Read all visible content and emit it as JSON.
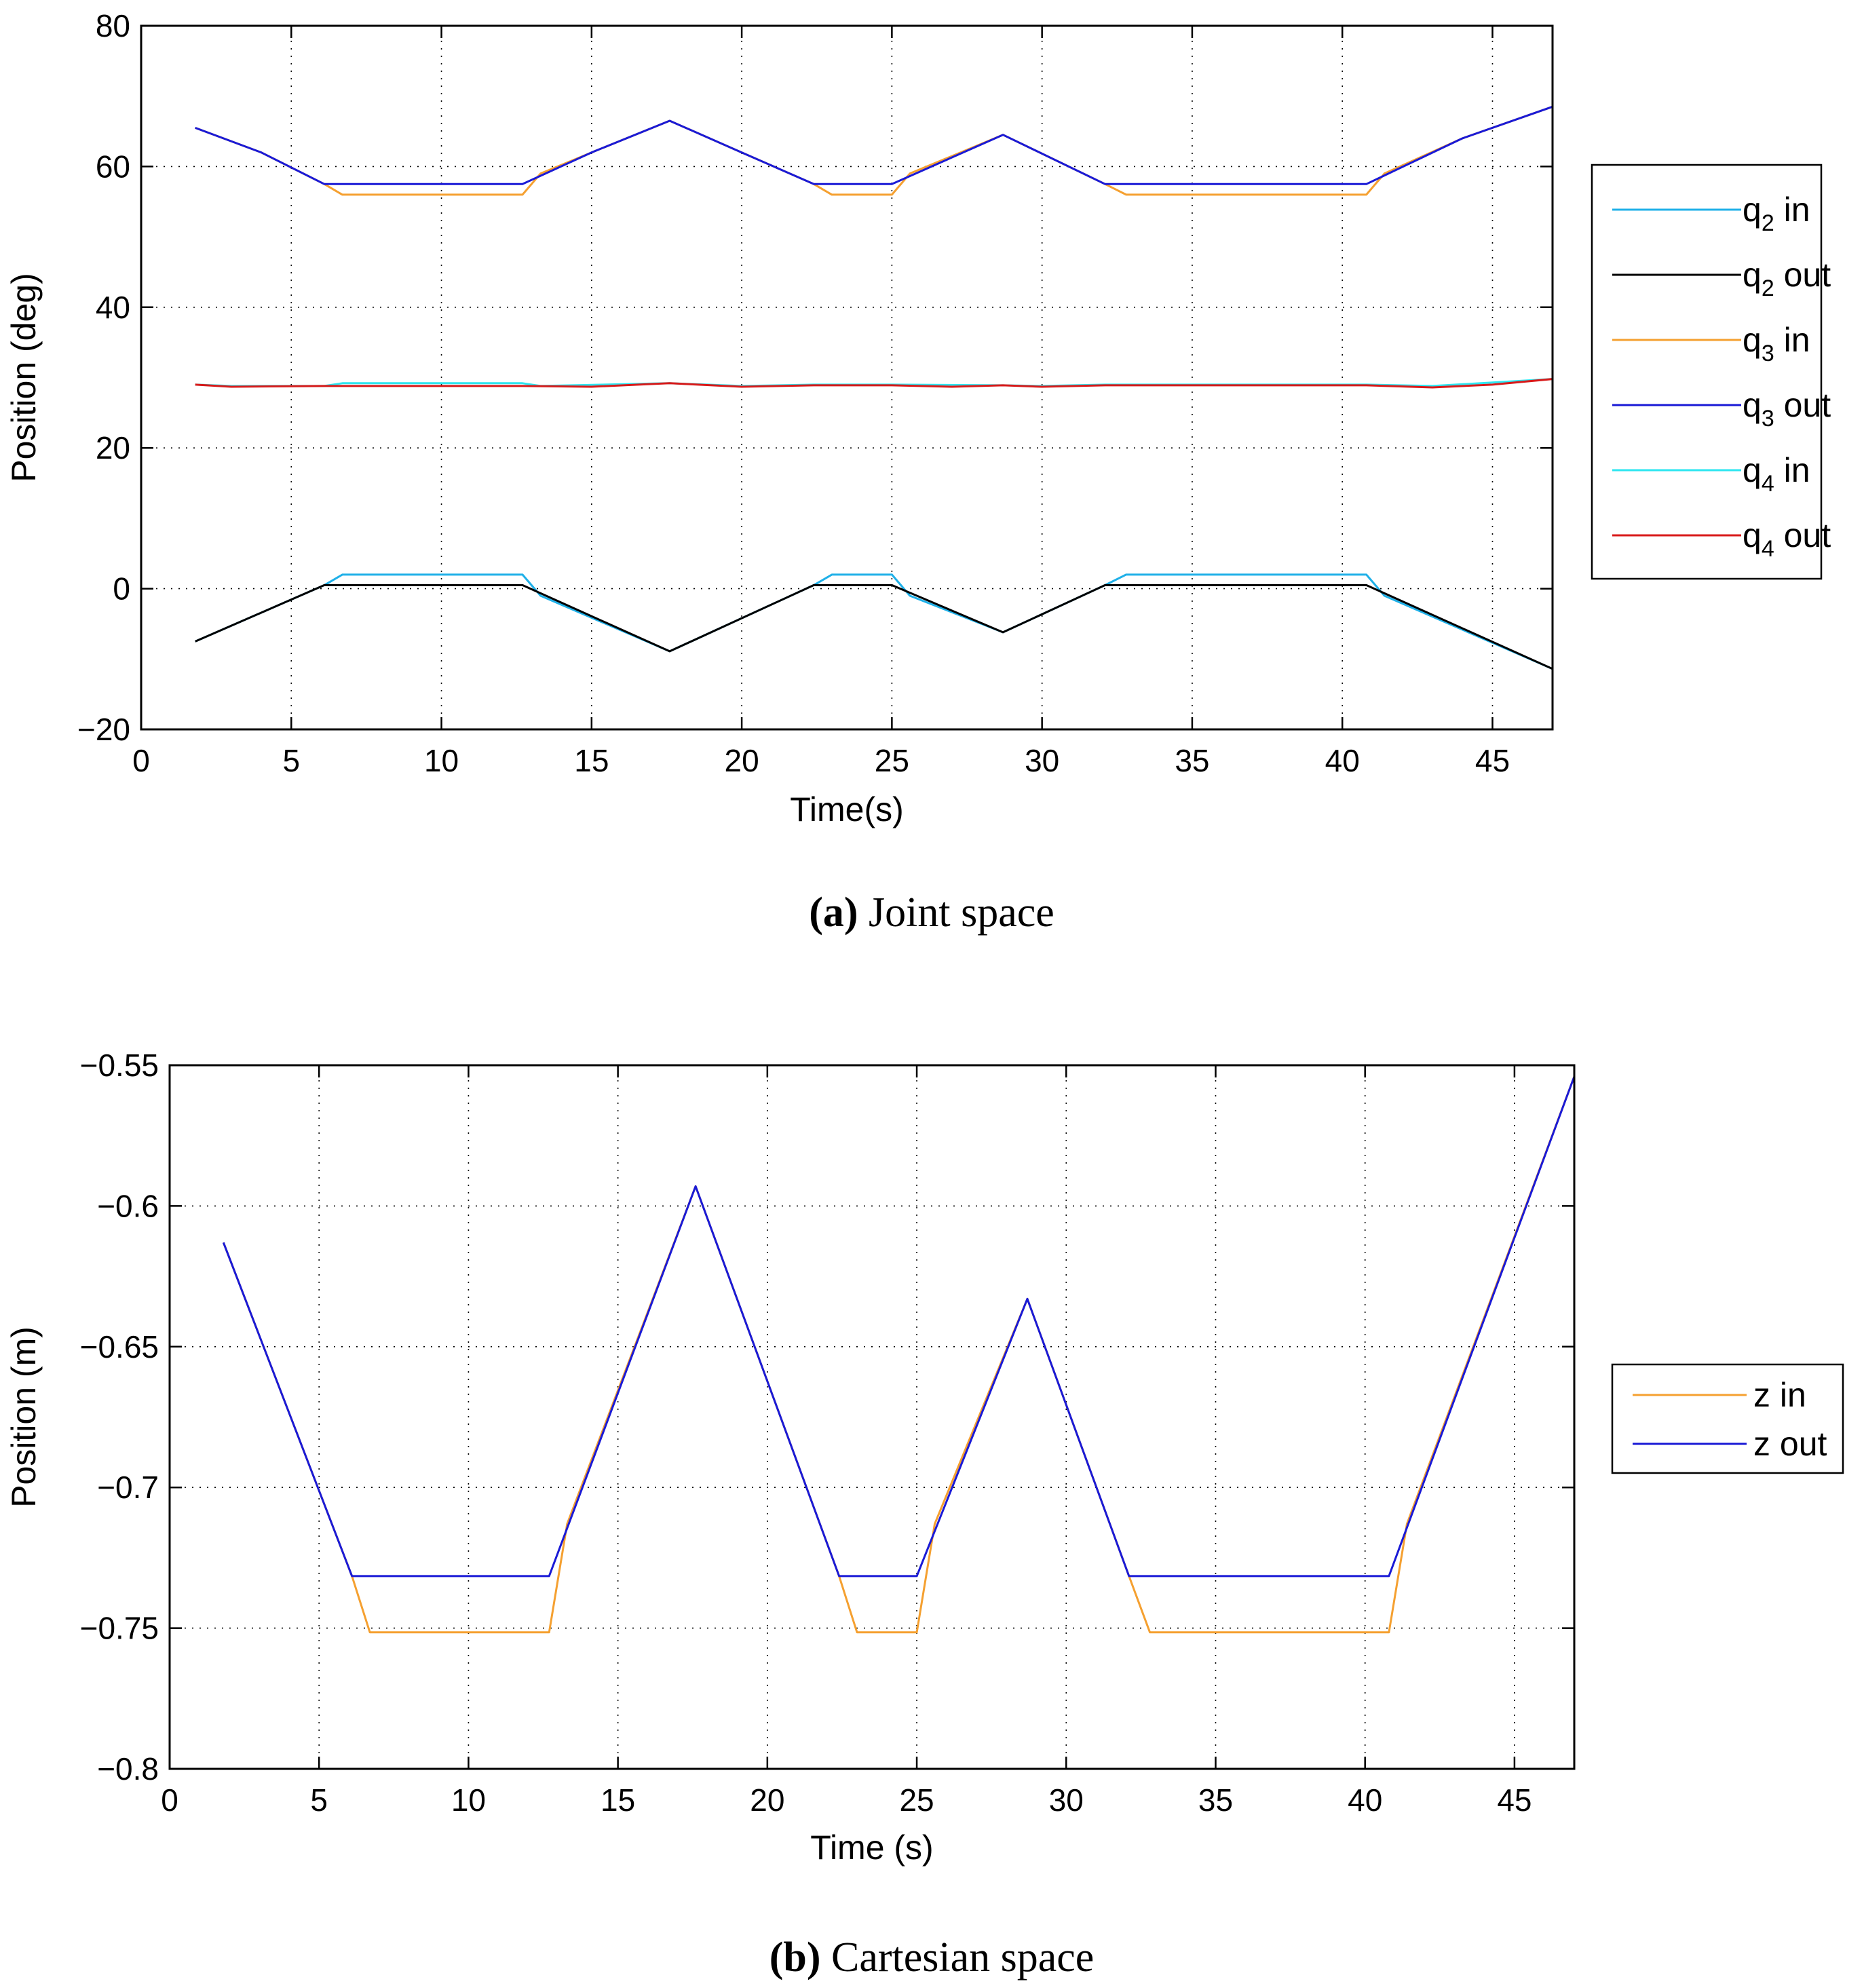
{
  "chart_data": [
    {
      "type": "line",
      "caption_label": "(a)",
      "caption_text": "Joint space",
      "xlabel": "Time(s)",
      "ylabel": "Position (deg)",
      "xlim": [
        0,
        47
      ],
      "ylim": [
        -20,
        80
      ],
      "xticks": [
        0,
        5,
        10,
        15,
        20,
        25,
        30,
        35,
        40,
        45
      ],
      "yticks": [
        -20,
        0,
        20,
        40,
        60,
        80
      ],
      "xtick_labels": [
        "0",
        "5",
        "10",
        "15",
        "20",
        "25",
        "30",
        "35",
        "40",
        "45"
      ],
      "ytick_labels": [
        "−20",
        "0",
        "20",
        "40",
        "60",
        "80"
      ],
      "grid": true,
      "legend_position": "outside-right",
      "series": [
        {
          "name": "q2 in",
          "sym": "q",
          "sub": "2",
          "suffix": " in",
          "color": "#1fb0e8",
          "x": [
            1.8,
            6.1,
            6.7,
            12.7,
            13.3,
            17.6,
            22.4,
            23.0,
            25.0,
            25.6,
            28.7,
            32.1,
            32.8,
            40.8,
            41.4,
            47.0
          ],
          "y": [
            -7.5,
            0.5,
            2.0,
            2.0,
            -1.0,
            -8.9,
            0.5,
            2.0,
            2.0,
            -1.0,
            -6.2,
            0.5,
            2.0,
            2.0,
            -1.0,
            -11.4
          ]
        },
        {
          "name": "q2 out",
          "sym": "q",
          "sub": "2",
          "suffix": " out",
          "color": "#000000",
          "x": [
            1.8,
            6.1,
            12.7,
            17.6,
            22.4,
            25.0,
            28.7,
            32.1,
            40.8,
            47.0
          ],
          "y": [
            -7.5,
            0.5,
            0.5,
            -8.9,
            0.5,
            0.5,
            -6.2,
            0.5,
            0.5,
            -11.4
          ]
        },
        {
          "name": "q3 in",
          "sym": "q",
          "sub": "3",
          "suffix": " in",
          "color": "#f5a030",
          "x": [
            1.8,
            4.0,
            6.1,
            6.7,
            12.7,
            13.3,
            15.0,
            17.6,
            20.0,
            22.4,
            23.0,
            25.0,
            25.6,
            28.7,
            32.1,
            32.8,
            40.8,
            41.4,
            44.0,
            47.0
          ],
          "y": [
            65.5,
            62.0,
            57.5,
            56.0,
            56.0,
            59.0,
            62.0,
            66.5,
            62.0,
            57.5,
            56.0,
            56.0,
            59.0,
            64.5,
            57.5,
            56.0,
            56.0,
            59.0,
            64.0,
            68.5
          ]
        },
        {
          "name": "q3 out",
          "sym": "q",
          "sub": "3",
          "suffix": " out",
          "color": "#1a1ad6",
          "x": [
            1.8,
            4.0,
            6.1,
            12.7,
            15.0,
            17.6,
            20.0,
            22.4,
            25.0,
            28.7,
            32.1,
            40.8,
            44.0,
            47.0
          ],
          "y": [
            65.5,
            62.0,
            57.5,
            57.5,
            62.0,
            66.5,
            62.0,
            57.5,
            57.5,
            64.5,
            57.5,
            57.5,
            64.0,
            68.5
          ]
        },
        {
          "name": "q4 in",
          "sym": "q",
          "sub": "4",
          "suffix": " in",
          "color": "#2ee6f0",
          "x": [
            1.8,
            3.0,
            6.1,
            6.7,
            12.7,
            13.3,
            17.6,
            20.0,
            22.4,
            25.0,
            28.7,
            30.0,
            32.1,
            40.8,
            43.0,
            47.0
          ],
          "y": [
            29.0,
            28.8,
            28.8,
            29.2,
            29.2,
            28.8,
            29.2,
            28.8,
            29.0,
            29.0,
            28.9,
            28.8,
            29.0,
            29.0,
            28.8,
            29.8
          ]
        },
        {
          "name": "q4 out",
          "sym": "q",
          "sub": "4",
          "suffix": " out",
          "color": "#d81a1a",
          "x": [
            1.8,
            3.0,
            6.1,
            12.7,
            15.0,
            17.6,
            20.0,
            22.4,
            25.0,
            27.0,
            28.7,
            30.0,
            32.1,
            40.8,
            43.0,
            45.0,
            47.0
          ],
          "y": [
            29.0,
            28.7,
            28.8,
            28.8,
            28.7,
            29.2,
            28.7,
            28.9,
            28.9,
            28.7,
            28.9,
            28.7,
            28.9,
            28.9,
            28.6,
            29.0,
            29.8
          ]
        }
      ]
    },
    {
      "type": "line",
      "caption_label": "(b)",
      "caption_text": "Cartesian space",
      "xlabel": "Time (s)",
      "ylabel": "Position (m)",
      "xlim": [
        0,
        47
      ],
      "ylim": [
        -0.8,
        -0.55
      ],
      "xticks": [
        0,
        5,
        10,
        15,
        20,
        25,
        30,
        35,
        40,
        45
      ],
      "yticks": [
        -0.8,
        -0.75,
        -0.7,
        -0.65,
        -0.6,
        -0.55
      ],
      "xtick_labels": [
        "0",
        "5",
        "10",
        "15",
        "20",
        "25",
        "30",
        "35",
        "40",
        "45"
      ],
      "ytick_labels": [
        "−0.8",
        "−0.75",
        "−0.7",
        "−0.65",
        "−0.6",
        "−0.55"
      ],
      "grid": true,
      "legend_position": "outside-right",
      "series": [
        {
          "name": "z in",
          "sym": "z in",
          "sub": "",
          "suffix": "",
          "color": "#f5a030",
          "x": [
            1.8,
            6.1,
            6.7,
            12.7,
            13.3,
            17.6,
            22.4,
            23.0,
            25.0,
            25.6,
            28.7,
            32.1,
            32.8,
            40.8,
            41.4,
            47.0
          ],
          "y": [
            -0.613,
            -0.7315,
            -0.7515,
            -0.7515,
            -0.713,
            -0.593,
            -0.7315,
            -0.7515,
            -0.7515,
            -0.713,
            -0.633,
            -0.7315,
            -0.7515,
            -0.7515,
            -0.713,
            -0.554
          ]
        },
        {
          "name": "z out",
          "sym": "z out",
          "sub": "",
          "suffix": "",
          "color": "#1a1ad6",
          "x": [
            1.8,
            6.1,
            12.7,
            17.6,
            22.4,
            25.0,
            28.7,
            32.1,
            40.8,
            47.0
          ],
          "y": [
            -0.613,
            -0.7315,
            -0.7315,
            -0.593,
            -0.7315,
            -0.7315,
            -0.633,
            -0.7315,
            -0.7315,
            -0.554
          ]
        }
      ]
    }
  ]
}
